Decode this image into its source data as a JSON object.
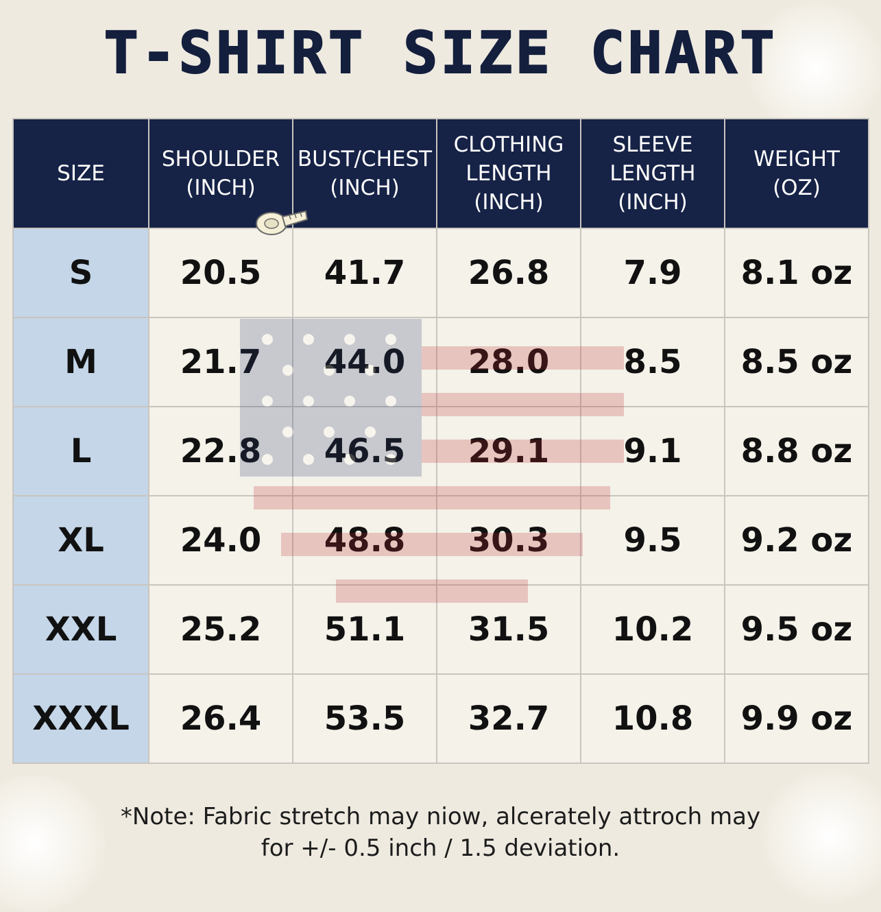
{
  "title": "T-SHIRT SIZE CHART",
  "table": {
    "headers": [
      [
        "SIZE"
      ],
      [
        "SHOULDER",
        "(INCH)"
      ],
      [
        "BUST/CHEST",
        "(INCH)"
      ],
      [
        "CLOTHING",
        "LENGTH",
        "(INCH)"
      ],
      [
        "SLEEVE",
        "LENGTH",
        "(INCH)"
      ],
      [
        "WEIGHT",
        "(OZ)"
      ]
    ],
    "rows": [
      [
        "S",
        "20.5",
        "41.7",
        "26.8",
        "7.9",
        "8.1 oz"
      ],
      [
        "M",
        "21.7",
        "44.0",
        "28.0",
        "8.5",
        "8.5 oz"
      ],
      [
        "L",
        "22.8",
        "46.5",
        "29.1",
        "9.1",
        "8.8 oz"
      ],
      [
        "XL",
        "24.0",
        "48.8",
        "30.3",
        "9.5",
        "9.2 oz"
      ],
      [
        "XXL",
        "25.2",
        "51.1",
        "31.5",
        "10.2",
        "9.5 oz"
      ],
      [
        "XXXL",
        "26.4",
        "53.5",
        "32.7",
        "10.8",
        "9.9 oz"
      ]
    ]
  },
  "note": {
    "line1": "*Note: Fabric stretch may niow, alcerately attroch may",
    "line2": "for +/- 0.5 inch / 1.5 deviation."
  },
  "colors": {
    "header_bg": "#162246",
    "size_col_bg": "#c4d6e8",
    "title": "#141f3d",
    "page_bg": "#eeeae0"
  },
  "icons": [
    "measuring-tape-icon",
    "american-flag-watermark",
    "cotton-flower-decoration"
  ]
}
